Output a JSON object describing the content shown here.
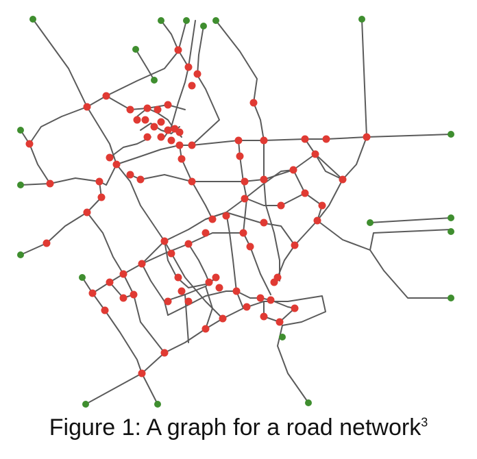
{
  "caption": {
    "text": "Figure 1: A graph for a road network",
    "superscript": "3"
  },
  "colors": {
    "road": "#5a5a5a",
    "intersection_node": "#e03a33",
    "endpoint_node": "#3f8e2f",
    "background": "#ffffff"
  },
  "legend": []
}
